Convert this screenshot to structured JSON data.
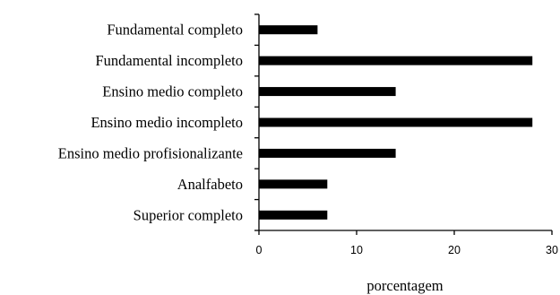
{
  "chart_data": {
    "type": "bar",
    "orientation": "horizontal",
    "title": "",
    "xlabel": "porcentagem",
    "ylabel": "",
    "xlim": [
      0,
      30
    ],
    "x_ticks": [
      "0",
      "10",
      "20",
      "30"
    ],
    "grid": false,
    "categories": [
      "Fundamental completo",
      "Fundamental incompleto",
      "Ensino medio completo",
      "Ensino medio incompleto",
      "Ensino medio profisionalizante",
      "Analfabeto",
      "Superior completo"
    ],
    "values": [
      6,
      28,
      14,
      28,
      14,
      7,
      7
    ],
    "bar_color": "#000000"
  }
}
